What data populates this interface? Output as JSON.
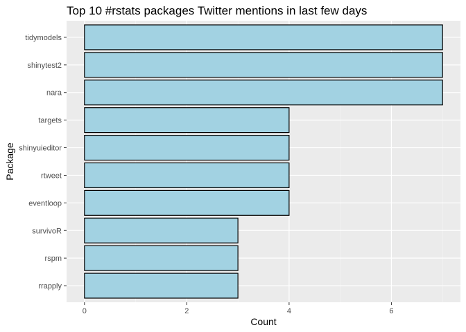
{
  "chart_data": {
    "type": "bar",
    "orientation": "horizontal",
    "title": "Top 10 #rstats packages Twitter mentions in last few days",
    "xlabel": "Count",
    "ylabel": "Package",
    "categories": [
      "tidymodels",
      "shinytest2",
      "nara",
      "targets",
      "shinyuieditor",
      "rtweet",
      "eventloop",
      "survivoR",
      "rspm",
      "rrapply"
    ],
    "values": [
      7,
      7,
      7,
      4,
      4,
      4,
      4,
      3,
      3,
      3
    ],
    "xlim": [
      -0.35,
      7.35
    ],
    "xticks": [
      0,
      2,
      4,
      6
    ],
    "grid": true,
    "legend": "none",
    "colors": {
      "bar_fill": "#a2d2e2",
      "bar_stroke": "#000000",
      "panel_bg": "#ebebeb",
      "grid_major": "#ffffff",
      "grid_minor": "#f5f5f5",
      "text_dark": "#000000",
      "tick_text": "#4d4d4d",
      "tick_mark": "#333333"
    }
  }
}
